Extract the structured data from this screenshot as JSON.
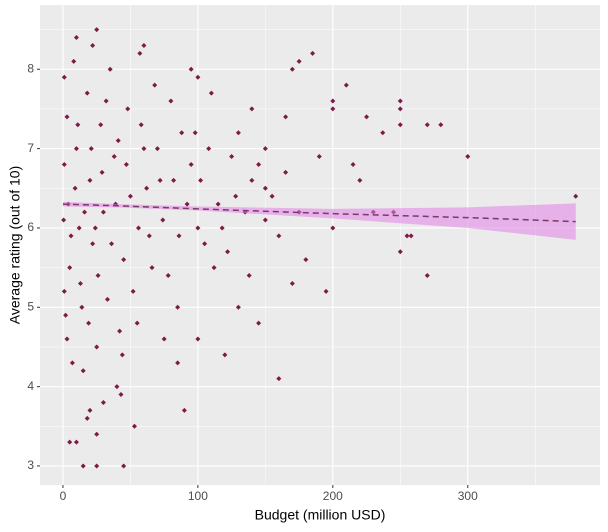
{
  "chart_data": {
    "type": "scatter",
    "x_label": "Budget (million USD)",
    "y_label": "Average rating (out of 10)",
    "xlim": [
      -17,
      398
    ],
    "ylim": [
      2.76,
      8.81
    ],
    "xticks": [
      0,
      100,
      200,
      300
    ],
    "yticks": [
      3,
      4,
      5,
      6,
      7,
      8
    ],
    "x_minor_ticks": [
      50,
      150,
      250,
      350
    ],
    "y_minor_ticks": [
      3.5,
      4.5,
      5.5,
      6.5,
      7.5,
      8.5
    ],
    "grid": true,
    "background": "#ebebeb",
    "series": [
      {
        "color": "#7d1a48",
        "x": [
          380,
          300,
          270,
          258,
          255,
          250,
          250,
          250,
          250,
          245,
          270,
          280,
          237,
          225,
          210,
          200,
          200,
          185,
          175,
          170,
          165,
          160,
          150,
          150,
          140,
          130,
          120,
          110,
          100,
          90,
          95,
          60,
          57,
          25,
          10,
          22,
          45,
          15,
          25,
          5,
          10,
          20,
          18,
          25,
          30,
          53,
          40,
          43,
          85,
          200,
          195,
          180,
          170,
          145,
          130,
          100,
          75,
          215,
          230,
          190,
          220,
          175,
          160,
          150,
          140,
          125,
          115,
          105,
          112,
          100,
          95,
          88,
          80,
          85,
          78,
          72,
          68,
          64,
          60,
          55,
          50,
          48,
          45,
          42,
          38,
          35,
          33,
          30,
          28,
          25,
          22,
          20,
          18,
          15,
          13,
          12,
          10,
          8,
          7,
          5,
          4,
          3,
          2,
          1,
          1,
          1,
          0.5,
          3,
          6,
          9,
          11,
          14,
          16,
          19,
          21,
          24,
          26,
          29,
          32,
          36,
          39,
          41,
          44,
          47,
          52,
          56,
          58,
          62,
          66,
          70,
          74,
          82,
          86,
          92,
          98,
          102,
          108,
          118,
          122,
          128,
          135,
          138,
          145,
          155,
          165
        ],
        "values": [
          6.4,
          6.9,
          5.4,
          5.9,
          5.9,
          7.6,
          7.5,
          7.3,
          5.7,
          6.2,
          7.3,
          7.3,
          7.2,
          7.4,
          7.8,
          7.6,
          7.5,
          8.2,
          8.1,
          8.0,
          7.4,
          4.1,
          6.5,
          7.0,
          7.5,
          7.2,
          4.4,
          7.7,
          7.9,
          3.7,
          8.0,
          8.3,
          8.2,
          8.5,
          8.4,
          8.3,
          3.0,
          3.0,
          3.0,
          3.3,
          3.3,
          3.7,
          3.6,
          3.4,
          3.8,
          3.5,
          4.0,
          3.9,
          4.3,
          6.0,
          5.2,
          5.6,
          5.3,
          4.8,
          5.0,
          4.6,
          4.6,
          6.8,
          6.2,
          6.9,
          6.6,
          6.2,
          5.9,
          6.1,
          6.6,
          6.9,
          6.3,
          5.8,
          5.5,
          6.0,
          6.8,
          7.2,
          7.6,
          5.0,
          5.4,
          6.6,
          7.8,
          5.9,
          7.0,
          4.8,
          6.4,
          7.5,
          5.6,
          4.7,
          6.9,
          8.0,
          5.1,
          6.2,
          7.3,
          4.5,
          5.8,
          6.6,
          7.7,
          4.2,
          5.3,
          6.0,
          7.0,
          8.1,
          4.3,
          5.5,
          6.3,
          7.4,
          4.9,
          6.8,
          7.9,
          5.2,
          6.1,
          4.6,
          5.9,
          6.5,
          7.3,
          5.0,
          6.2,
          4.8,
          7.0,
          6.0,
          5.4,
          6.7,
          7.6,
          5.8,
          6.3,
          7.1,
          4.4,
          6.8,
          5.2,
          6.0,
          7.3,
          6.5,
          5.5,
          7.0,
          6.1,
          6.6,
          5.9,
          6.3,
          7.2,
          6.6,
          7.0,
          6.0,
          5.7,
          6.4,
          6.2,
          5.4,
          6.8,
          6.4,
          6.7
        ]
      }
    ],
    "trend": {
      "line_color": "#7b3a68",
      "band_color": "#e27fe6",
      "x": [
        0,
        40,
        100,
        200,
        300,
        380
      ],
      "values": [
        6.3,
        6.28,
        6.24,
        6.18,
        6.13,
        6.08
      ],
      "lower": [
        6.27,
        6.26,
        6.22,
        6.12,
        6.0,
        5.85
      ],
      "upper": [
        6.33,
        6.3,
        6.27,
        6.24,
        6.26,
        6.31
      ]
    }
  }
}
